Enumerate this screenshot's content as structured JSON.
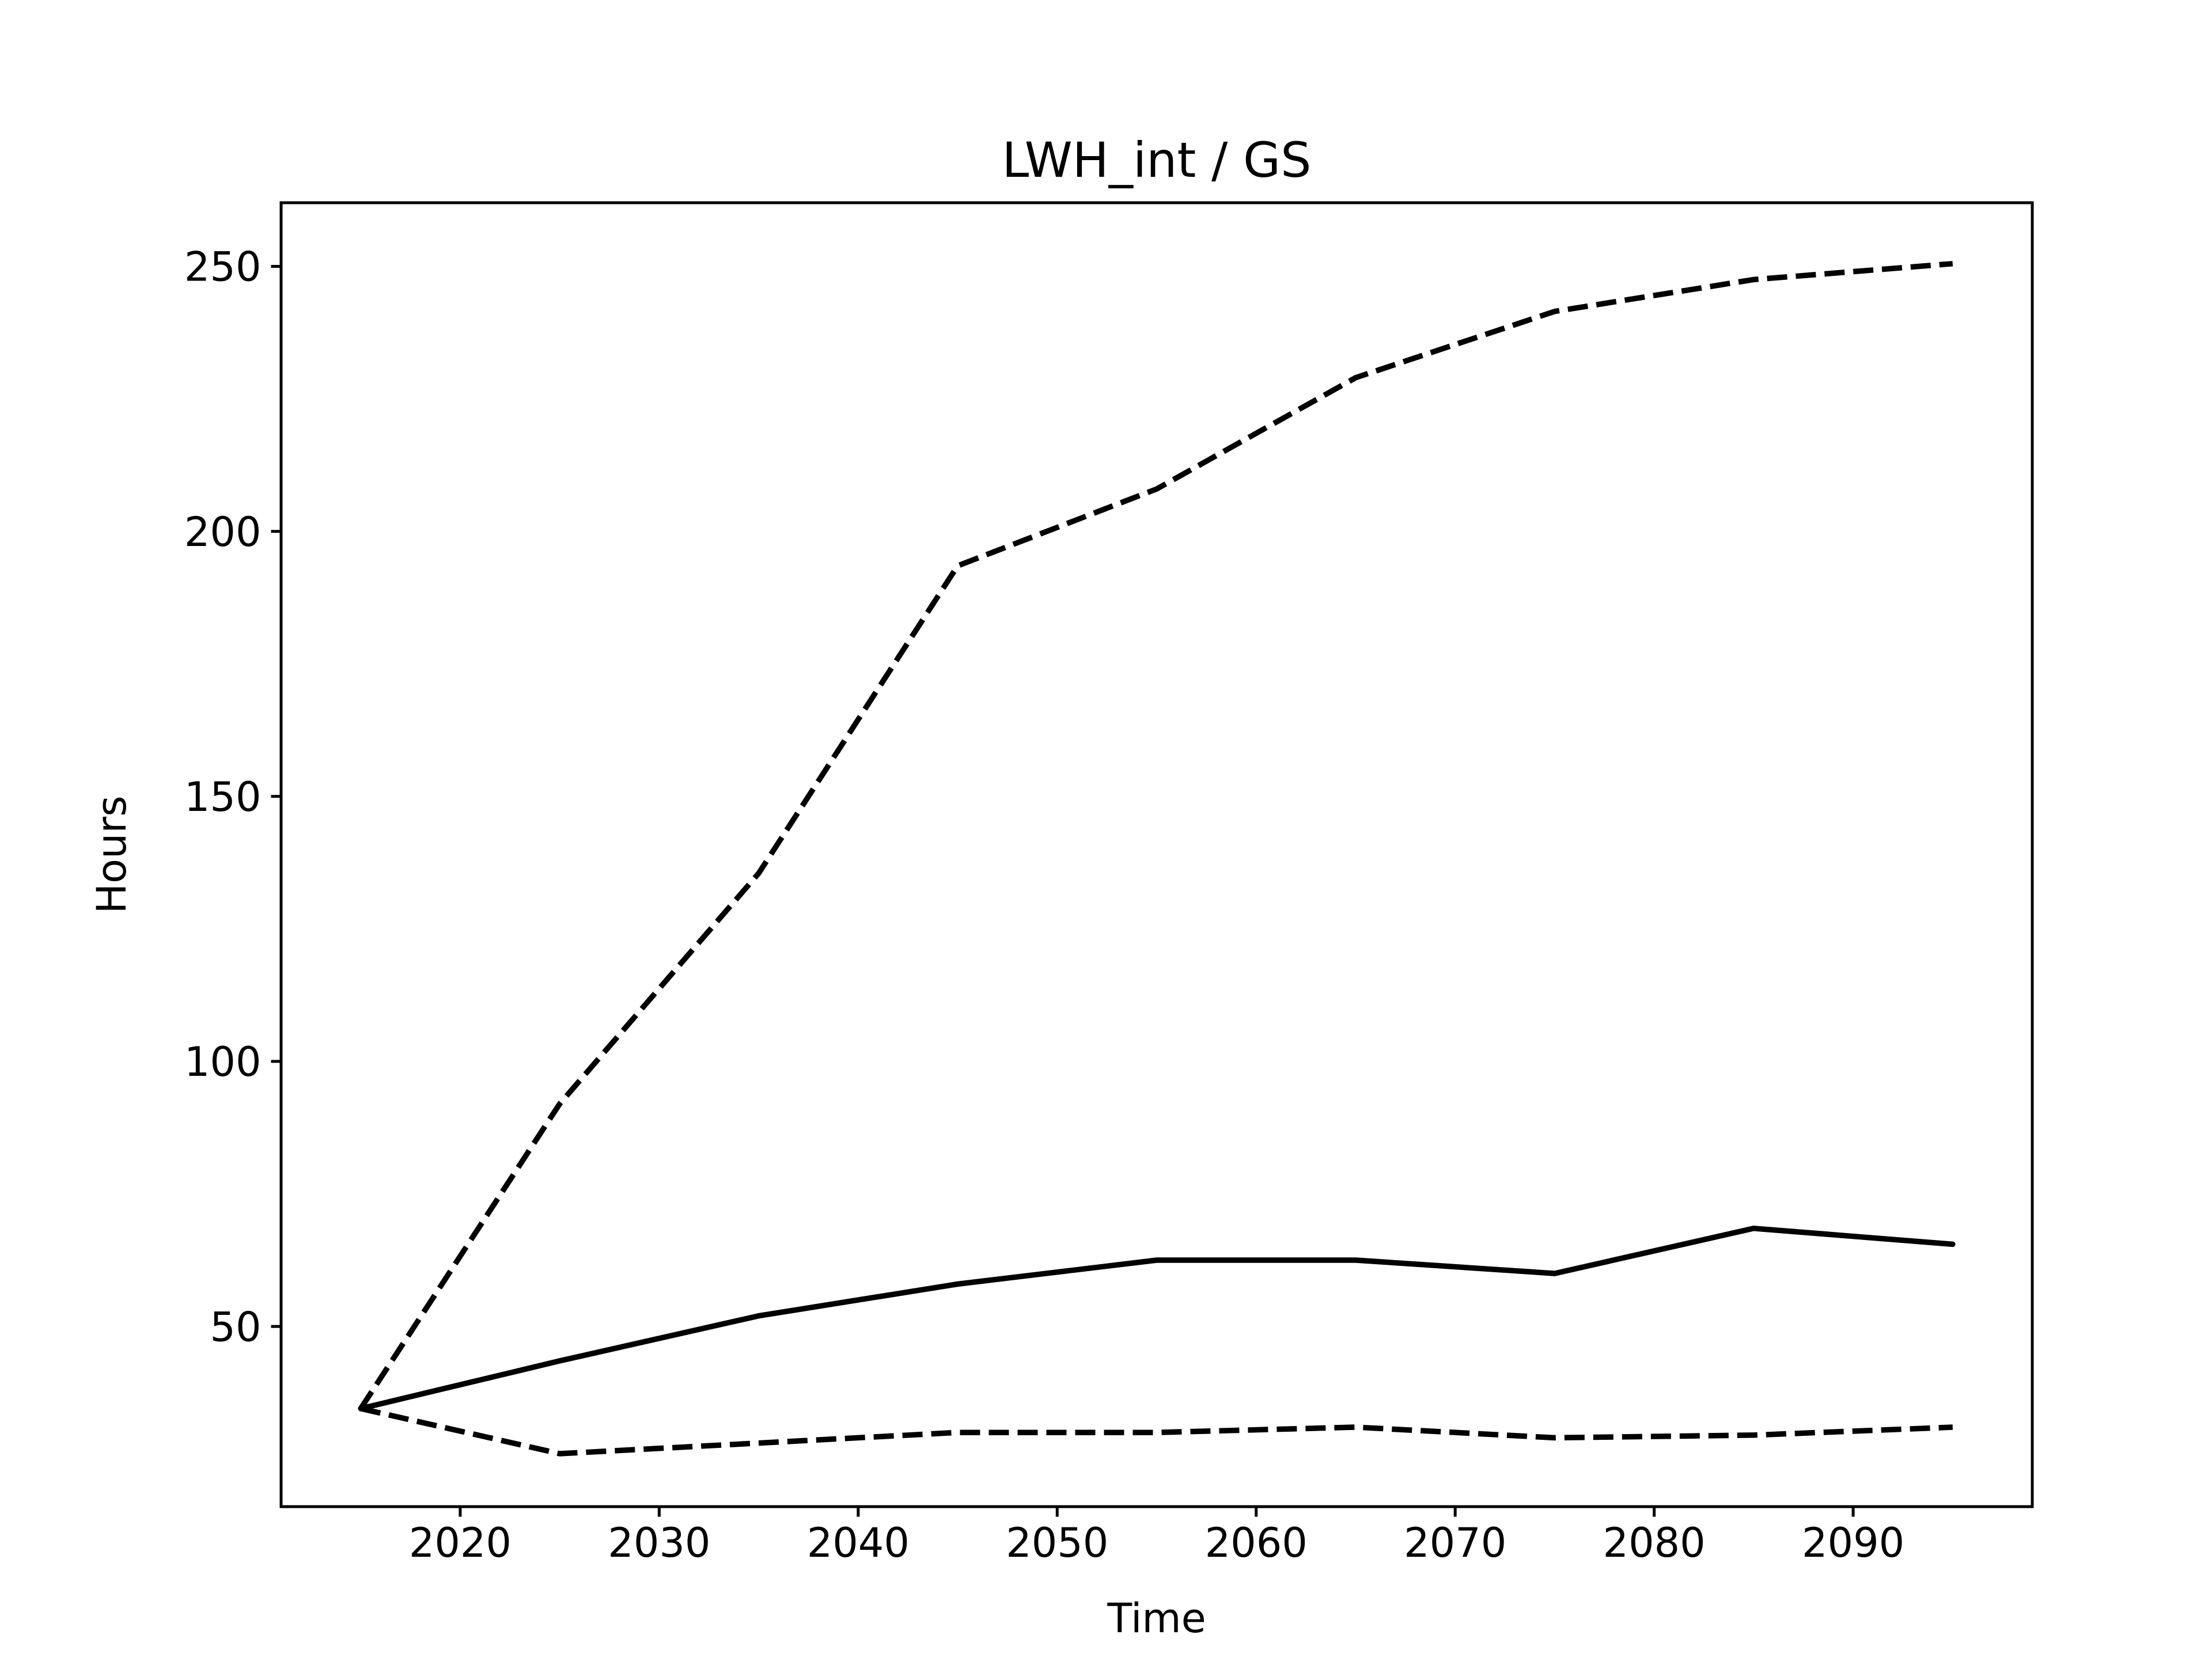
{
  "chart_data": {
    "type": "line",
    "title": "LWH_int / GS",
    "xlabel": "Time",
    "ylabel": "Hours",
    "xlim": [
      2011,
      2099
    ],
    "ylim": [
      16,
      262
    ],
    "xticks": [
      2020,
      2030,
      2040,
      2050,
      2060,
      2070,
      2080,
      2090
    ],
    "yticks": [
      50,
      100,
      150,
      200,
      250
    ],
    "grid": false,
    "legend": "none",
    "x": [
      2015,
      2025,
      2035,
      2045,
      2055,
      2065,
      2075,
      2085,
      2095
    ],
    "series": [
      {
        "style": "solid",
        "color": "#000000",
        "values": [
          34.5,
          43.5,
          52.0,
          58.0,
          62.5,
          62.5,
          60.0,
          68.5,
          65.5
        ]
      },
      {
        "style": "dashed",
        "color": "#000000",
        "values": [
          34.5,
          92.0,
          135.5,
          193.5,
          208.0,
          229.0,
          241.5,
          247.5,
          250.5
        ]
      },
      {
        "style": "dashed",
        "color": "#000000",
        "values": [
          34.5,
          26.0,
          28.0,
          30.0,
          30.0,
          31.0,
          29.0,
          29.5,
          31.0
        ]
      }
    ]
  }
}
